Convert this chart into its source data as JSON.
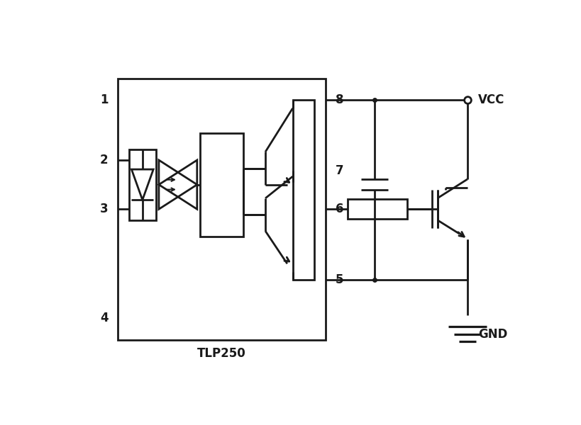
{
  "line_color": "#1a1a1a",
  "text_color": "#1a1a1a",
  "bg_color": "#ffffff",
  "lw": 2.0,
  "fig_width": 8.2,
  "fig_height": 6.0,
  "title": "TLP250",
  "vcc_label": "VCC",
  "gnd_label": "GND"
}
